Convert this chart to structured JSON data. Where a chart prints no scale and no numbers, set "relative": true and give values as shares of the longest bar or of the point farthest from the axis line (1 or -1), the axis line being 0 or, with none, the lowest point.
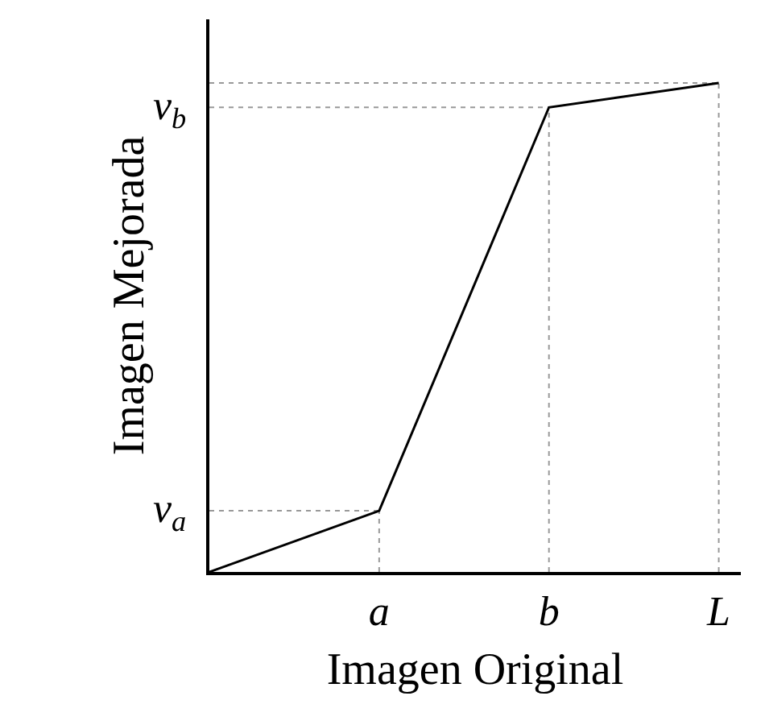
{
  "chart_data": {
    "type": "line",
    "xlabel": "Imagen Original",
    "ylabel": "Imagen Mejorada",
    "categories": [
      null,
      "a",
      "b",
      "L"
    ],
    "series": [
      {
        "color": "#000000",
        "values": [
          0,
          0.125,
          0.95,
          1
        ]
      }
    ],
    "relative": true,
    "annotations": [
      {
        "text": "v$_{a}$",
        "x": "a",
        "y": 0.125
      },
      {
        "text": "v$_{b}$",
        "x": "b",
        "y": 0.95
      }
    ],
    "grid": "x",
    "marker": "none",
    "line_style": "solid"
  }
}
